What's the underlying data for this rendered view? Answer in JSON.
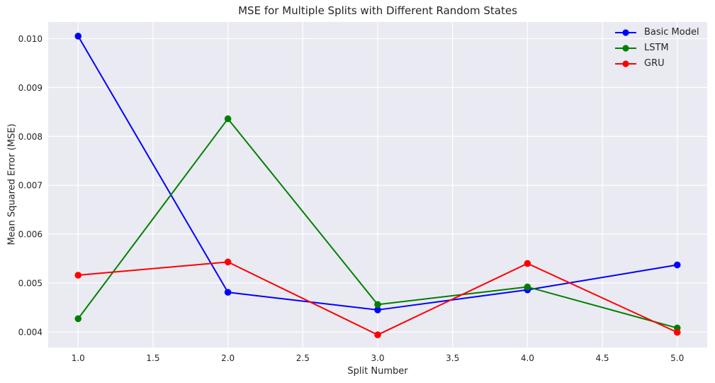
{
  "chart_data": {
    "type": "line",
    "title": "MSE for Multiple Splits with Different Random States",
    "xlabel": "Split Number",
    "ylabel": "Mean Squared Error (MSE)",
    "x": [
      1,
      2,
      3,
      4,
      5
    ],
    "series": [
      {
        "name": "Basic Model",
        "color": "#0000ff",
        "values": [
          0.01005,
          0.00481,
          0.00445,
          0.00486,
          0.00537
        ]
      },
      {
        "name": "LSTM",
        "color": "#008000",
        "values": [
          0.00427,
          0.00836,
          0.00456,
          0.00492,
          0.00408
        ]
      },
      {
        "name": "GRU",
        "color": "#ff0000",
        "values": [
          0.00516,
          0.00543,
          0.00394,
          0.0054,
          0.00399
        ]
      }
    ],
    "xlim": [
      0.8,
      5.2
    ],
    "ylim": [
      0.00368,
      0.01034
    ],
    "xticks": {
      "values": [
        1.0,
        1.5,
        2.0,
        2.5,
        3.0,
        3.5,
        4.0,
        4.5,
        5.0
      ],
      "labels": [
        "1.0",
        "1.5",
        "2.0",
        "2.5",
        "3.0",
        "3.5",
        "4.0",
        "4.5",
        "5.0"
      ]
    },
    "yticks": {
      "values": [
        0.004,
        0.005,
        0.006,
        0.007,
        0.008,
        0.009,
        0.01
      ],
      "labels": [
        "0.004",
        "0.005",
        "0.006",
        "0.007",
        "0.008",
        "0.009",
        "0.010"
      ]
    },
    "grid": true,
    "legend_position": "upper right",
    "marker": "circle",
    "plot_bg_color": "#eaeaf2",
    "grid_color": "#ffffff",
    "text_color": "#262626"
  }
}
